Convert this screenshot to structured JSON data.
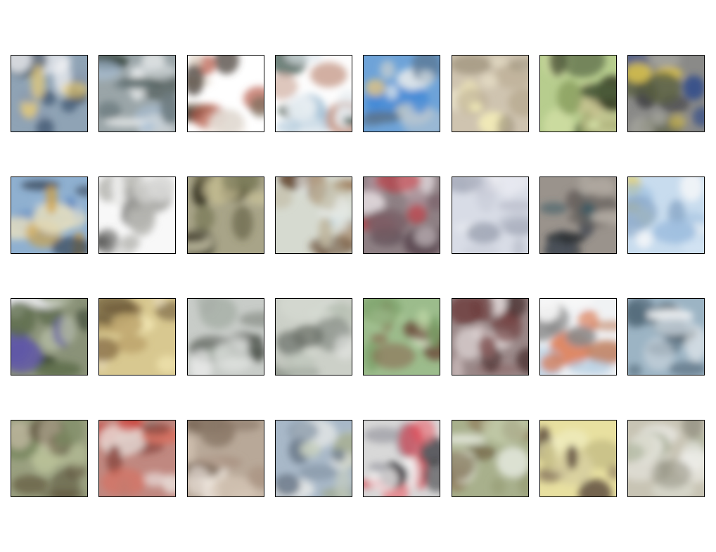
{
  "figure": {
    "grid": {
      "rows": 4,
      "cols": 8
    },
    "border_color": "#000000",
    "tiles": [
      {
        "row": 0,
        "col": 0,
        "subject": "blurry-white-shape-on-blue",
        "bg": "#8fa3b5",
        "colors": [
          "#3e5570",
          "#f2f3f5",
          "#8a9bb0",
          "#f0d070",
          "#2d3a4c"
        ]
      },
      {
        "row": 0,
        "col": 1,
        "subject": "blurry-white-bird",
        "bg": "#9aa5a8",
        "colors": [
          "#f2f4f4",
          "#3b4a45",
          "#a9c0d6",
          "#6d7c80",
          "#d8dde0"
        ]
      },
      {
        "row": 0,
        "col": 2,
        "subject": "blurry-red-animal-on-white",
        "bg": "#ffffff",
        "colors": [
          "#b85a48",
          "#7a6c5c",
          "#d9c9b8",
          "#4a4038",
          "#f5efe8"
        ]
      },
      {
        "row": 0,
        "col": 3,
        "subject": "small-dark-object-on-white",
        "bg": "#fdfdfd",
        "colors": [
          "#2f4a40",
          "#dfe8ee",
          "#a9c4d8",
          "#c9a090",
          "#eef2f5"
        ]
      },
      {
        "row": 0,
        "col": 4,
        "subject": "blue-sky-over-water",
        "bg": "#6ea3d8",
        "colors": [
          "#3d86d6",
          "#dfe6ea",
          "#5a7590",
          "#b8c6d0",
          "#d8c08a"
        ]
      },
      {
        "row": 0,
        "col": 5,
        "subject": "pale-beige-scene",
        "bg": "#cfc4b0",
        "colors": [
          "#e8e0c8",
          "#b8aa90",
          "#f3ecb8",
          "#9a8e78",
          "#ddd6c6"
        ]
      },
      {
        "row": 0,
        "col": 6,
        "subject": "green-tree-shape",
        "bg": "#b7cd8e",
        "colors": [
          "#3a4028",
          "#d6e2a8",
          "#8aa060",
          "#4a5a3a",
          "#c8c090"
        ]
      },
      {
        "row": 0,
        "col": 7,
        "subject": "blue-and-yellow-vehicle",
        "bg": "#8a8a88",
        "colors": [
          "#2f4a8a",
          "#d8c050",
          "#5a6040",
          "#a8a8a0",
          "#3c3c40"
        ]
      },
      {
        "row": 1,
        "col": 0,
        "subject": "sky-over-orange-horizon",
        "bg": "#8fb0d0",
        "colors": [
          "#5d88c0",
          "#e8e0c0",
          "#d0a040",
          "#3a4a5c",
          "#b8c8d8"
        ]
      },
      {
        "row": 1,
        "col": 1,
        "subject": "grey-sketch-on-white",
        "bg": "#f8f8f8",
        "colors": [
          "#9a9a96",
          "#5a5a58",
          "#d8d8d6",
          "#b8b8b4",
          "#ffffff"
        ]
      },
      {
        "row": 1,
        "col": 2,
        "subject": "olive-animal-blur",
        "bg": "#a8a488",
        "colors": [
          "#5a5538",
          "#c0b890",
          "#7a7a58",
          "#3c3828",
          "#d0ccb0"
        ]
      },
      {
        "row": 1,
        "col": 3,
        "subject": "brown-animal-on-pale",
        "bg": "#d6dad0",
        "colors": [
          "#a08060",
          "#e8ecea",
          "#6a5038",
          "#c0b8a0",
          "#bcd0d8"
        ]
      },
      {
        "row": 1,
        "col": 4,
        "subject": "red-car-blur",
        "bg": "#8e8084",
        "colors": [
          "#c03840",
          "#5a4850",
          "#e0d8dc",
          "#7a6068",
          "#a89098"
        ]
      },
      {
        "row": 1,
        "col": 5,
        "subject": "pale-airplane",
        "bg": "#d8dce6",
        "colors": [
          "#c8ccd8",
          "#e8eaf0",
          "#9aa0b0",
          "#b8bcca",
          "#f0f0f4"
        ]
      },
      {
        "row": 1,
        "col": 6,
        "subject": "dark-grey-scene",
        "bg": "#9a938c",
        "colors": [
          "#4a5058",
          "#3a5a64",
          "#b8b0a8",
          "#6a6460",
          "#2c3034"
        ]
      },
      {
        "row": 1,
        "col": 7,
        "subject": "airplane-on-blue-sky",
        "bg": "#c8dcee",
        "colors": [
          "#f4f6f8",
          "#a0c0e0",
          "#e8d050",
          "#8aa8c8",
          "#d8e8f4"
        ]
      },
      {
        "row": 2,
        "col": 0,
        "subject": "purple-and-white-on-green",
        "bg": "#8a9278",
        "colors": [
          "#6058a8",
          "#f0f0f4",
          "#5a6a48",
          "#b0b8a0",
          "#3a4432"
        ]
      },
      {
        "row": 2,
        "col": 1,
        "subject": "yellow-brown-texture",
        "bg": "#d8c890",
        "colors": [
          "#8a7048",
          "#f0e4b0",
          "#6a5838",
          "#c0a870",
          "#e8dcc0"
        ]
      },
      {
        "row": 2,
        "col": 2,
        "subject": "white-truck-blur",
        "bg": "#c8ccc8",
        "colors": [
          "#f4f4f4",
          "#4a5048",
          "#a8b0a8",
          "#7a8078",
          "#e0e2e0"
        ]
      },
      {
        "row": 2,
        "col": 3,
        "subject": "pale-landscape",
        "bg": "#ccd0c8",
        "colors": [
          "#e4e6e2",
          "#8a9088",
          "#b8c0b4",
          "#d8dcd4",
          "#6a7068"
        ]
      },
      {
        "row": 2,
        "col": 4,
        "subject": "brown-figure-on-green",
        "bg": "#9cbc8c",
        "colors": [
          "#6a4838",
          "#c0d8a8",
          "#8a6850",
          "#7aa068",
          "#d8e4c8"
        ]
      },
      {
        "row": 2,
        "col": 5,
        "subject": "maroon-animal-blur",
        "bg": "#9a8888",
        "colors": [
          "#6a3838",
          "#e8e0e0",
          "#8a6060",
          "#4a3030",
          "#c8b8b8"
        ]
      },
      {
        "row": 2,
        "col": 6,
        "subject": "orange-truck-on-white",
        "bg": "#f0f2f4",
        "colors": [
          "#d86838",
          "#a8c8e0",
          "#8a8a8a",
          "#f8f8f8",
          "#c08060"
        ]
      },
      {
        "row": 2,
        "col": 7,
        "subject": "white-shape-on-blue-grey",
        "bg": "#9cb4c4",
        "colors": [
          "#f0f2f4",
          "#4a6070",
          "#c8d4dc",
          "#6a8090",
          "#3a4854"
        ]
      },
      {
        "row": 3,
        "col": 0,
        "subject": "green-brown-texture",
        "bg": "#9aa080",
        "colors": [
          "#6a6048",
          "#b8c098",
          "#7a8860",
          "#5a5038",
          "#c0b8a0"
        ]
      },
      {
        "row": 3,
        "col": 1,
        "subject": "red-blur",
        "bg": "#c08880",
        "colors": [
          "#c83830",
          "#e8dcd8",
          "#8a4840",
          "#d87060",
          "#a09088"
        ]
      },
      {
        "row": 3,
        "col": 2,
        "subject": "pale-animal-face",
        "bg": "#b8a898",
        "colors": [
          "#f0e8e0",
          "#8a7868",
          "#d8c8b8",
          "#a89080",
          "#6a5848"
        ]
      },
      {
        "row": 3,
        "col": 3,
        "subject": "white-ship-on-blue",
        "bg": "#a8b8c8",
        "colors": [
          "#f0f0ec",
          "#6a7888",
          "#c8d0c0",
          "#8898a8",
          "#a0a888"
        ]
      },
      {
        "row": 3,
        "col": 4,
        "subject": "red-car",
        "bg": "#d8d8d8",
        "colors": [
          "#d83040",
          "#f4f4f4",
          "#3a3a40",
          "#a0a0a8",
          "#e87880"
        ]
      },
      {
        "row": 3,
        "col": 5,
        "subject": "green-brown-animal",
        "bg": "#a8b08c",
        "colors": [
          "#8a7050",
          "#c8d0b0",
          "#6a5838",
          "#e4e8dc",
          "#9aa078"
        ]
      },
      {
        "row": 3,
        "col": 6,
        "subject": "small-animal-on-yellow",
        "bg": "#e8e0a0",
        "colors": [
          "#8a7860",
          "#f0ecc0",
          "#c8c088",
          "#6a5a48",
          "#d8d0a0"
        ]
      },
      {
        "row": 3,
        "col": 7,
        "subject": "white-shape-on-beige",
        "bg": "#c8c4b4",
        "colors": [
          "#f4f4f2",
          "#9a9888",
          "#d8d8cc",
          "#a8b098",
          "#e8e6e0"
        ]
      }
    ]
  }
}
